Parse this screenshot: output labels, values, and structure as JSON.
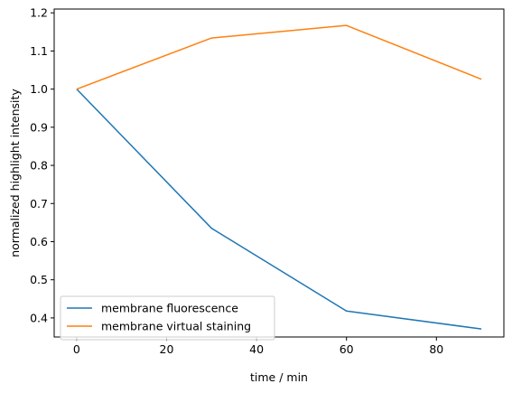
{
  "chart_data": {
    "type": "line",
    "xlabel": "time / min",
    "ylabel": "normalized highlight intensity",
    "xlim": [
      -5,
      95
    ],
    "ylim": [
      0.35,
      1.21
    ],
    "xticks": [
      0,
      20,
      40,
      60,
      80
    ],
    "yticks": [
      0.4,
      0.5,
      0.6,
      0.7,
      0.8,
      0.9,
      1.0,
      1.1,
      1.2
    ],
    "grid": false,
    "legend_position": "lower-left",
    "series": [
      {
        "name": "membrane fluorescence",
        "color": "#1f77b4",
        "x": [
          0,
          30,
          60,
          90
        ],
        "y": [
          1.0,
          0.635,
          0.418,
          0.371
        ]
      },
      {
        "name": "membrane virtual staining",
        "color": "#ff7f0e",
        "x": [
          0,
          30,
          60,
          90
        ],
        "y": [
          1.0,
          1.134,
          1.167,
          1.026
        ]
      }
    ]
  }
}
